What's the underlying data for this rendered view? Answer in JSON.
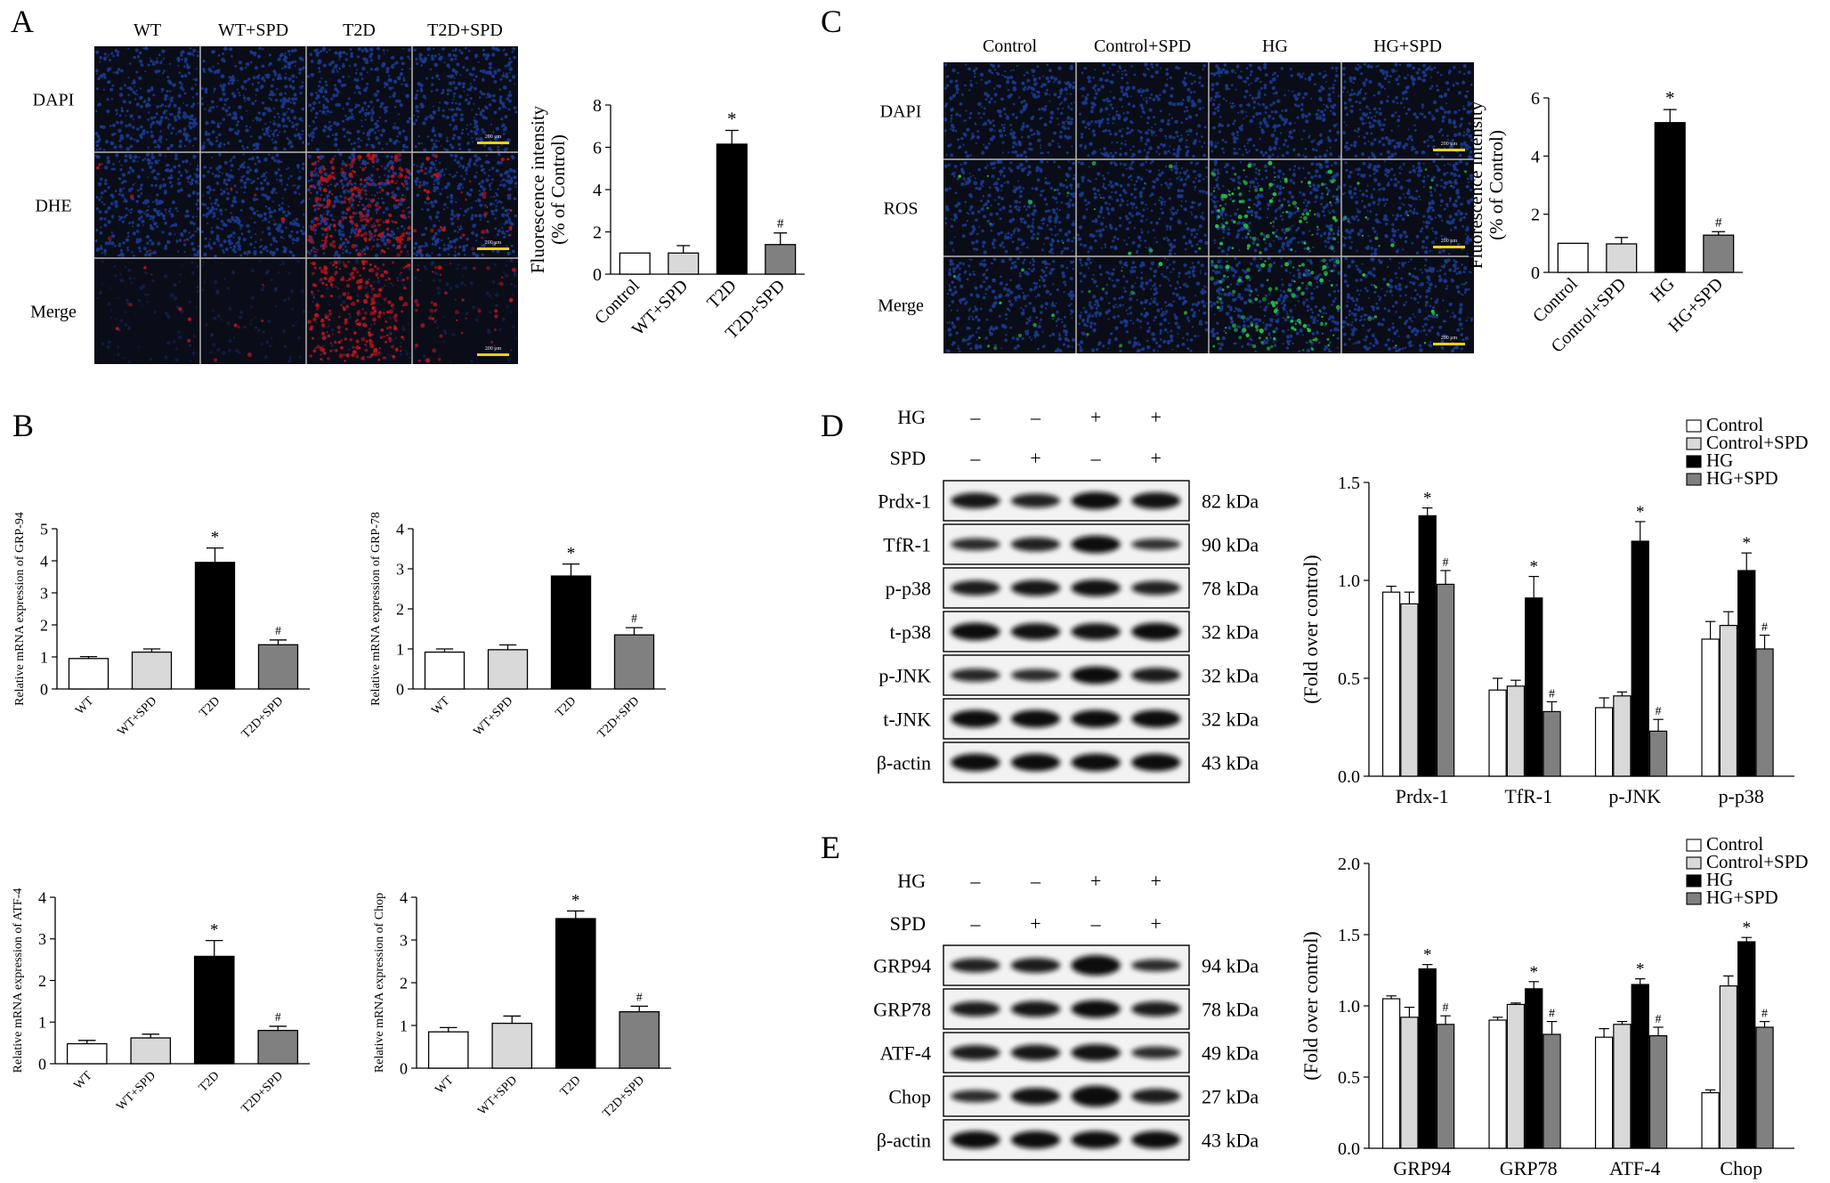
{
  "panels": {
    "A": {
      "letter": "A",
      "columns": [
        "WT",
        "WT+SPD",
        "T2D",
        "T2D+SPD"
      ],
      "rows": [
        "DAPI",
        "DHE",
        "Merge"
      ],
      "scale_bar": "200 μm"
    },
    "B": {
      "letter": "B"
    },
    "C": {
      "letter": "C",
      "columns": [
        "Control",
        "Control+SPD",
        "HG",
        "HG+SPD"
      ],
      "rows": [
        "DAPI",
        "ROS",
        "Merge"
      ],
      "scale_bar": "200 μm"
    },
    "D": {
      "letter": "D",
      "conditions": [
        {
          "label": "HG",
          "marks": [
            "–",
            "–",
            "+",
            "+"
          ]
        },
        {
          "label": "SPD",
          "marks": [
            "–",
            "+",
            "–",
            "+"
          ]
        }
      ],
      "blots": [
        {
          "label": "Prdx-1",
          "kda": "82 kDa"
        },
        {
          "label": "TfR-1",
          "kda": "90 kDa"
        },
        {
          "label": "p-p38",
          "kda": "78 kDa"
        },
        {
          "label": "t-p38",
          "kda": "32 kDa"
        },
        {
          "label": "p-JNK",
          "kda": "32 kDa"
        },
        {
          "label": "t-JNK",
          "kda": "32 kDa"
        },
        {
          "label": "β-actin",
          "kda": "43 kDa"
        }
      ]
    },
    "E": {
      "letter": "E",
      "conditions": [
        {
          "label": "HG",
          "marks": [
            "–",
            "–",
            "+",
            "+"
          ]
        },
        {
          "label": "SPD",
          "marks": [
            "–",
            "+",
            "–",
            "+"
          ]
        }
      ],
      "blots": [
        {
          "label": "GRP94",
          "kda": "94 kDa"
        },
        {
          "label": "GRP78",
          "kda": "78 kDa"
        },
        {
          "label": "ATF-4",
          "kda": "49 kDa"
        },
        {
          "label": "Chop",
          "kda": "27 kDa"
        },
        {
          "label": "β-actin",
          "kda": "43 kDa"
        }
      ]
    }
  },
  "colors": {
    "bar_fills": [
      "#ffffff",
      "#d9d9d9",
      "#000000",
      "#808080"
    ],
    "dapi": "#1a3a8f",
    "dhe": "#c0141e",
    "ros": "#27c24a",
    "scale_bar": "#f2d200"
  },
  "chart_data": [
    {
      "id": "A",
      "type": "bar",
      "categories": [
        "Control",
        "WT+SPD",
        "T2D",
        "T2D+SPD"
      ],
      "values": [
        1.0,
        1.0,
        6.15,
        1.4
      ],
      "errors": [
        0,
        0.35,
        0.65,
        0.55
      ],
      "annotations": [
        "",
        "",
        "*",
        "#"
      ],
      "title": "",
      "xlabel": "",
      "ylabel": "Fluorescence intensity (% of Control)",
      "ylim": [
        0,
        8
      ],
      "yticks": [
        "0",
        "2",
        "4",
        "6",
        "8"
      ],
      "grid": false
    },
    {
      "id": "B1",
      "type": "bar",
      "categories": [
        "WT",
        "WT+SPD",
        "T2D",
        "T2D+SPD"
      ],
      "values": [
        0.95,
        1.15,
        3.95,
        1.38
      ],
      "errors": [
        0.06,
        0.1,
        0.45,
        0.15
      ],
      "annotations": [
        "",
        "",
        "*",
        "#"
      ],
      "ylabel": "Relative mRNA expression of GRP-94",
      "ylim": [
        0,
        5
      ],
      "yticks": [
        "0",
        "1",
        "2",
        "3",
        "4",
        "5"
      ]
    },
    {
      "id": "B2",
      "type": "bar",
      "categories": [
        "WT",
        "WT+SPD",
        "T2D",
        "T2D+SPD"
      ],
      "values": [
        0.92,
        0.98,
        2.82,
        1.35
      ],
      "errors": [
        0.08,
        0.12,
        0.3,
        0.18
      ],
      "annotations": [
        "",
        "",
        "*",
        "#"
      ],
      "ylabel": "Relative mRNA expression of GRP-78",
      "ylim": [
        0,
        4
      ],
      "yticks": [
        "0",
        "1",
        "2",
        "3",
        "4"
      ]
    },
    {
      "id": "B3",
      "type": "bar",
      "categories": [
        "WT",
        "WT+SPD",
        "T2D",
        "T2D+SPD"
      ],
      "values": [
        0.48,
        0.62,
        2.58,
        0.8
      ],
      "errors": [
        0.08,
        0.09,
        0.38,
        0.1
      ],
      "annotations": [
        "",
        "",
        "*",
        "#"
      ],
      "ylabel": "Relative mRNA expression of ATF-4",
      "ylim": [
        0,
        4
      ],
      "yticks": [
        "0",
        "1",
        "2",
        "3",
        "4"
      ]
    },
    {
      "id": "B4",
      "type": "bar",
      "categories": [
        "WT",
        "WT+SPD",
        "T2D",
        "T2D+SPD"
      ],
      "values": [
        0.85,
        1.05,
        3.5,
        1.32
      ],
      "errors": [
        0.1,
        0.17,
        0.18,
        0.13
      ],
      "annotations": [
        "",
        "",
        "*",
        "#"
      ],
      "ylabel": "Relative mRNA expression of Chop",
      "ylim": [
        0,
        4
      ],
      "yticks": [
        "0",
        "1",
        "2",
        "3",
        "4"
      ]
    },
    {
      "id": "C",
      "type": "bar",
      "categories": [
        "Control",
        "Control+SPD",
        "HG",
        "HG+SPD"
      ],
      "values": [
        1.0,
        0.98,
        5.15,
        1.28
      ],
      "errors": [
        0,
        0.22,
        0.45,
        0.12
      ],
      "annotations": [
        "",
        "",
        "*",
        "#"
      ],
      "ylabel": "Fluorescence intensity (% of Control)",
      "ylim": [
        0,
        6
      ],
      "yticks": [
        "0",
        "2",
        "4",
        "6"
      ]
    },
    {
      "id": "D",
      "type": "bar",
      "categories": [
        "Prdx-1",
        "TfR-1",
        "p-JNK",
        "p-p38"
      ],
      "series": [
        {
          "name": "Control",
          "values": [
            0.94,
            0.44,
            0.35,
            0.7
          ],
          "errors": [
            0.03,
            0.06,
            0.05,
            0.09
          ]
        },
        {
          "name": "Control+SPD",
          "values": [
            0.88,
            0.46,
            0.41,
            0.77
          ],
          "errors": [
            0.06,
            0.03,
            0.02,
            0.07
          ]
        },
        {
          "name": "HG",
          "values": [
            1.33,
            0.91,
            1.2,
            1.05
          ],
          "errors": [
            0.04,
            0.11,
            0.1,
            0.09
          ]
        },
        {
          "name": "HG+SPD",
          "values": [
            0.98,
            0.33,
            0.23,
            0.65
          ],
          "errors": [
            0.07,
            0.05,
            0.06,
            0.07
          ]
        }
      ],
      "annotations": [
        "",
        "",
        "*",
        "#"
      ],
      "ylabel": "(Fold over control)",
      "ylim": [
        0,
        1.5
      ],
      "yticks": [
        "0.0",
        "0.5",
        "1.0",
        "1.5"
      ],
      "legend": "top-right"
    },
    {
      "id": "E",
      "type": "bar",
      "categories": [
        "GRP94",
        "GRP78",
        "ATF-4",
        "Chop"
      ],
      "series": [
        {
          "name": "Control",
          "values": [
            1.05,
            0.9,
            0.78,
            0.39
          ],
          "errors": [
            0.02,
            0.02,
            0.06,
            0.02
          ]
        },
        {
          "name": "Control+SPD",
          "values": [
            0.92,
            1.01,
            0.87,
            1.14
          ],
          "errors": [
            0.07,
            0.01,
            0.02,
            0.07
          ]
        },
        {
          "name": "HG",
          "values": [
            1.26,
            1.12,
            1.15,
            1.45
          ],
          "errors": [
            0.03,
            0.05,
            0.04,
            0.03
          ]
        },
        {
          "name": "HG+SPD",
          "values": [
            0.87,
            0.8,
            0.79,
            0.85
          ],
          "errors": [
            0.06,
            0.09,
            0.06,
            0.04
          ]
        }
      ],
      "annotations": [
        "",
        "",
        "*",
        "#"
      ],
      "ylabel": "(Fold over control)",
      "ylim": [
        0,
        2.0
      ],
      "yticks": [
        "0.0",
        "0.5",
        "1.0",
        "1.5",
        "2.0"
      ],
      "legend": "top-right"
    }
  ]
}
